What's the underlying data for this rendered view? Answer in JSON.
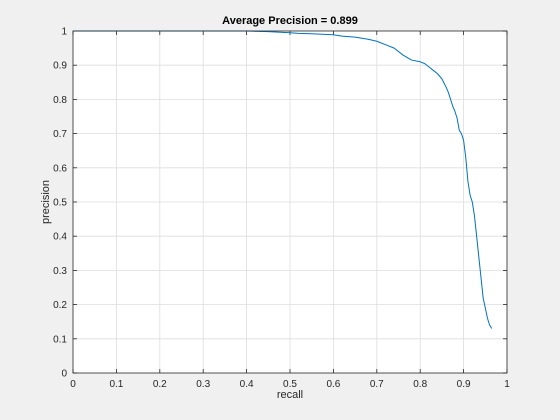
{
  "chart_data": {
    "type": "line",
    "title": "Average Precision = 0.899",
    "xlabel": "recall",
    "ylabel": "precision",
    "xlim": [
      0,
      1
    ],
    "ylim": [
      0,
      1
    ],
    "xticks": [
      0,
      0.1,
      0.2,
      0.3,
      0.4,
      0.5,
      0.6,
      0.7,
      0.8,
      0.9,
      1
    ],
    "yticks": [
      0,
      0.1,
      0.2,
      0.3,
      0.4,
      0.5,
      0.6,
      0.7,
      0.8,
      0.9,
      1
    ],
    "xtick_labels": [
      "0",
      "0.1",
      "0.2",
      "0.3",
      "0.4",
      "0.5",
      "0.6",
      "0.7",
      "0.8",
      "0.9",
      "1"
    ],
    "ytick_labels": [
      "0",
      "0.1",
      "0.2",
      "0.3",
      "0.4",
      "0.5",
      "0.6",
      "0.7",
      "0.8",
      "0.9",
      "1"
    ],
    "grid": true,
    "series": [
      {
        "color": "#0072bd",
        "x": [
          0,
          0.05,
          0.1,
          0.15,
          0.2,
          0.25,
          0.3,
          0.35,
          0.4,
          0.45,
          0.5,
          0.52,
          0.55,
          0.58,
          0.6,
          0.62,
          0.65,
          0.68,
          0.7,
          0.72,
          0.74,
          0.76,
          0.78,
          0.8,
          0.81,
          0.82,
          0.83,
          0.84,
          0.85,
          0.86,
          0.865,
          0.87,
          0.875,
          0.88,
          0.885,
          0.89,
          0.895,
          0.9,
          0.905,
          0.91,
          0.915,
          0.92,
          0.925,
          0.93,
          0.935,
          0.94,
          0.945,
          0.95,
          0.955,
          0.96,
          0.965
        ],
        "y": [
          1.0,
          1.0,
          1.0,
          1.0,
          1.0,
          1.0,
          1.0,
          1.0,
          1.0,
          0.998,
          0.995,
          0.993,
          0.992,
          0.99,
          0.989,
          0.985,
          0.982,
          0.976,
          0.97,
          0.96,
          0.95,
          0.93,
          0.915,
          0.91,
          0.905,
          0.895,
          0.885,
          0.875,
          0.86,
          0.835,
          0.82,
          0.8,
          0.78,
          0.765,
          0.745,
          0.71,
          0.7,
          0.68,
          0.63,
          0.56,
          0.52,
          0.5,
          0.46,
          0.4,
          0.34,
          0.28,
          0.22,
          0.19,
          0.16,
          0.14,
          0.13
        ]
      }
    ]
  }
}
